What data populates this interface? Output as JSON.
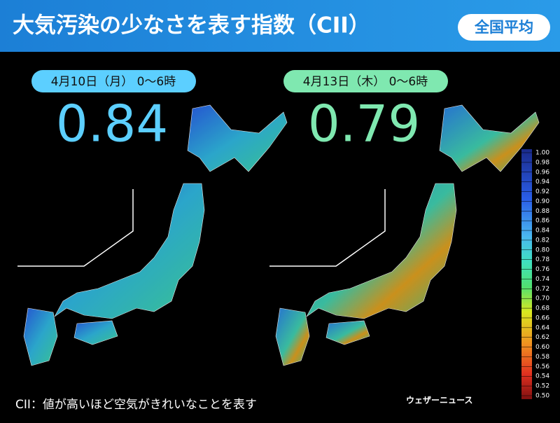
{
  "header": {
    "title": "大気汚染の少なさを表す指数（CII）",
    "badge": "全国平均"
  },
  "panels": [
    {
      "date": "4月10日（月） 0～6時",
      "value": 0.84
    },
    {
      "date": "4月13日（木） 0～6時",
      "value": 0.79
    }
  ],
  "colorbar": {
    "ticks": [
      {
        "value": 1,
        "label": "1.00"
      },
      {
        "value": 0.98,
        "label": "0.98"
      },
      {
        "value": 0.96,
        "label": "0.96"
      },
      {
        "value": 0.94,
        "label": "0.94"
      },
      {
        "value": 0.92,
        "label": "0.92"
      },
      {
        "value": 0.9,
        "label": "0.90"
      },
      {
        "value": 0.88,
        "label": "0.88"
      },
      {
        "value": 0.86,
        "label": "0.86"
      },
      {
        "value": 0.84,
        "label": "0.84"
      },
      {
        "value": 0.82,
        "label": "0.82"
      },
      {
        "value": 0.8,
        "label": "0.80"
      },
      {
        "value": 0.78,
        "label": "0.78"
      },
      {
        "value": 0.76,
        "label": "0.76"
      },
      {
        "value": 0.74,
        "label": "0.74"
      },
      {
        "value": 0.72,
        "label": "0.72"
      },
      {
        "value": 0.7,
        "label": "0.70"
      },
      {
        "value": 0.68,
        "label": "0.68"
      },
      {
        "value": 0.66,
        "label": "0.66"
      },
      {
        "value": 0.64,
        "label": "0.64"
      },
      {
        "value": 0.62,
        "label": "0.62"
      },
      {
        "value": 0.6,
        "label": "0.60"
      },
      {
        "value": 0.58,
        "label": "0.58"
      },
      {
        "value": 0.56,
        "label": "0.56"
      },
      {
        "value": 0.54,
        "label": "0.54"
      },
      {
        "value": 0.52,
        "label": "0.52"
      },
      {
        "value": 0.5,
        "label": "0.50"
      }
    ]
  },
  "footnote": "CII：値が高いほど空気がきれいなことを表す",
  "logo": "ウェザーニュース"
}
